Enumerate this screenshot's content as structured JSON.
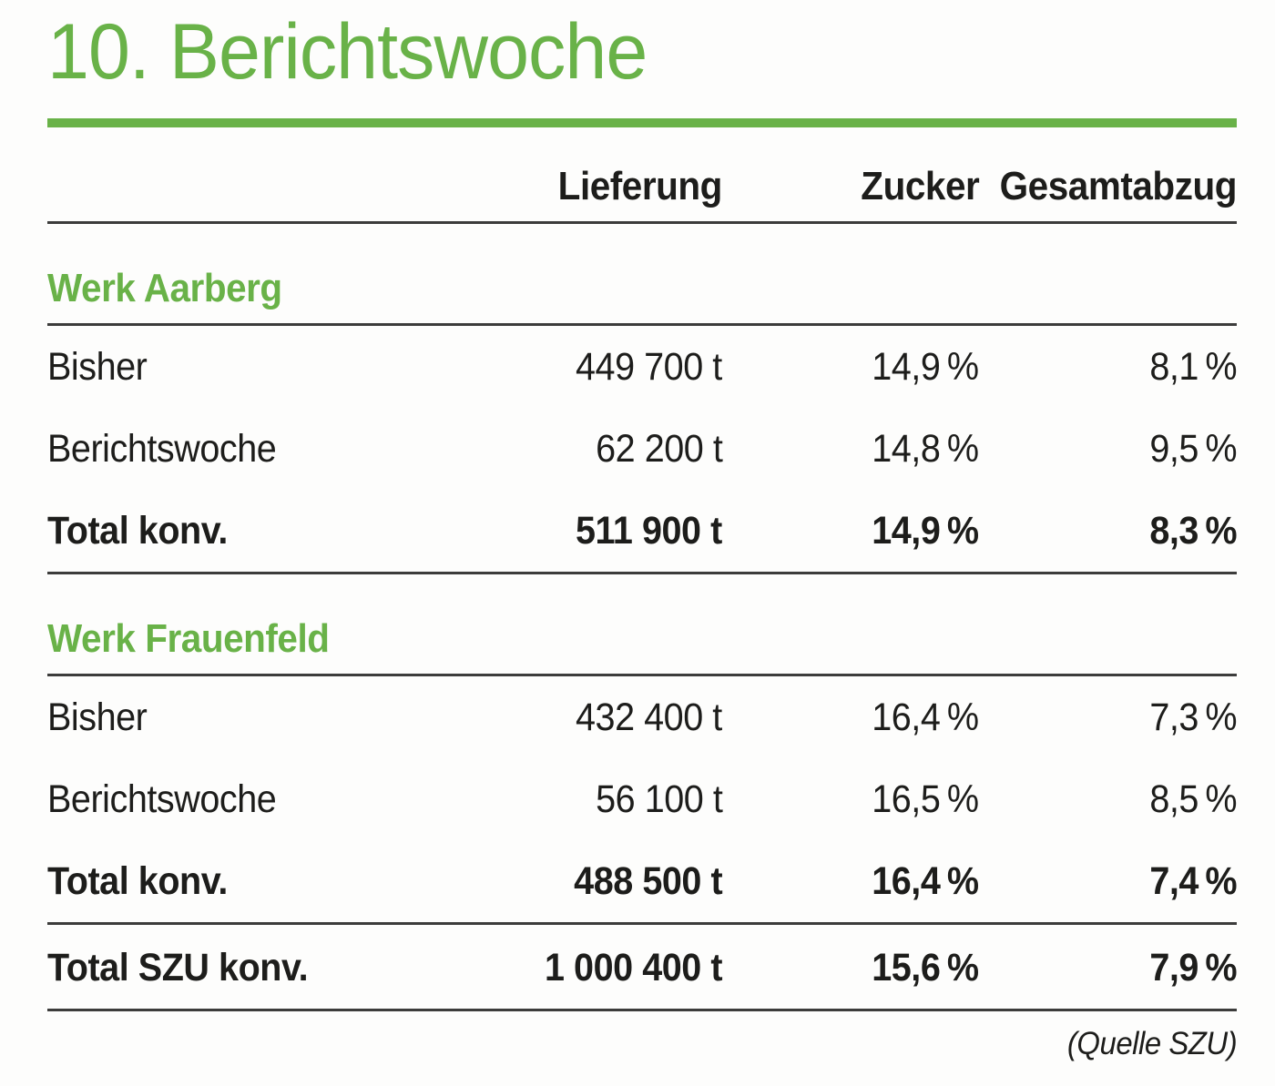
{
  "title": "10. Berichtswoche",
  "source_note": "(Quelle SZU)",
  "colors": {
    "accent_green": "#69b248",
    "text_black": "#1d1d1b",
    "rule_dark": "#3c3c3b"
  },
  "table": {
    "columns": [
      "",
      "Lieferung",
      "Zucker",
      "Gesamtabzug"
    ],
    "sections": [
      {
        "heading": "Werk Aarberg",
        "rows": [
          {
            "label": "Bisher",
            "lieferung": "449 700 t",
            "zucker": "14,9 %",
            "gesamtabzug": "8,1 %",
            "bold": false
          },
          {
            "label": "Berichtswoche",
            "lieferung": "62 200 t",
            "zucker": "14,8 %",
            "gesamtabzug": "9,5 %",
            "bold": false
          },
          {
            "label": "Total konv.",
            "lieferung": "511 900 t",
            "zucker": "14,9 %",
            "gesamtabzug": "8,3 %",
            "bold": true
          }
        ]
      },
      {
        "heading": "Werk Frauenfeld",
        "rows": [
          {
            "label": "Bisher",
            "lieferung": "432 400 t",
            "zucker": "16,4 %",
            "gesamtabzug": "7,3 %",
            "bold": false
          },
          {
            "label": "Berichtswoche",
            "lieferung": "56 100 t",
            "zucker": "16,5 %",
            "gesamtabzug": "8,5 %",
            "bold": false
          },
          {
            "label": "Total konv.",
            "lieferung": "488 500 t",
            "zucker": "16,4 %",
            "gesamtabzug": "7,4 %",
            "bold": true
          }
        ]
      }
    ],
    "grand_total": {
      "label": "Total SZU konv.",
      "lieferung": "1 000 400 t",
      "zucker": "15,6 %",
      "gesamtabzug": "7,9 %"
    }
  }
}
